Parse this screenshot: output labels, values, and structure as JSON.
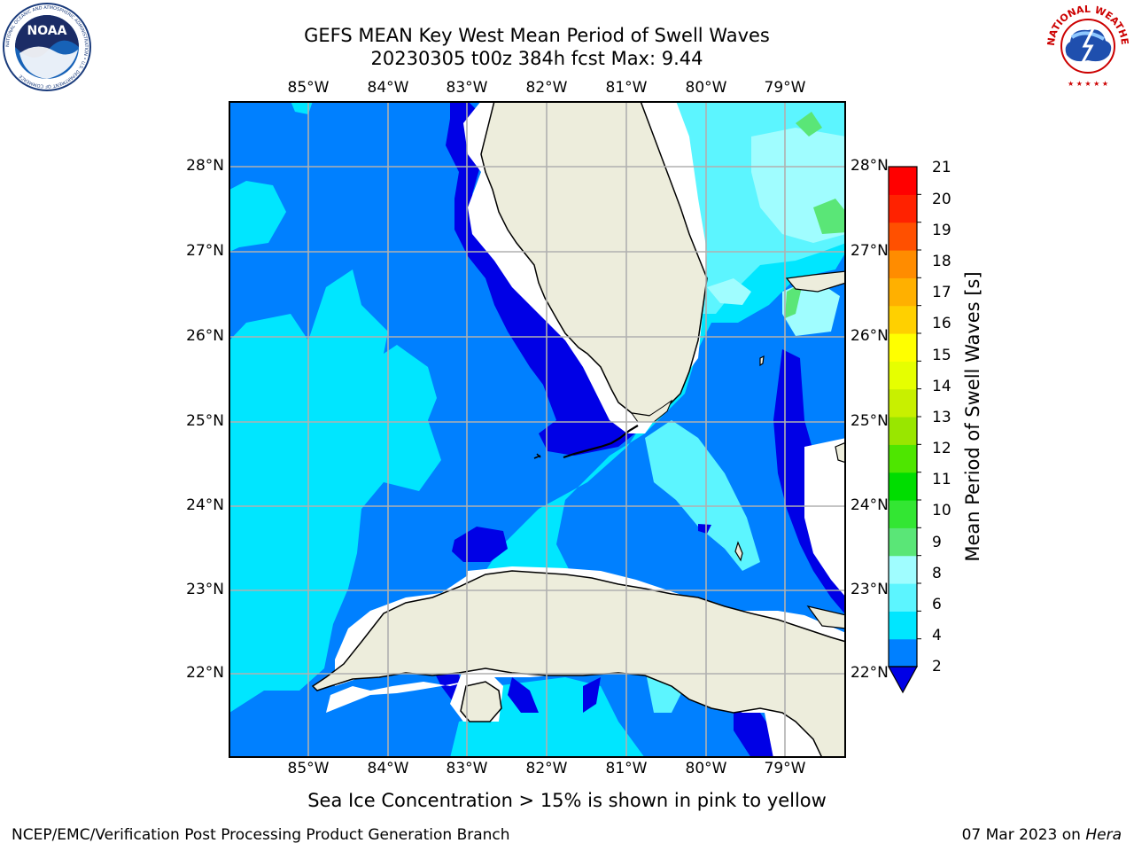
{
  "title": {
    "line1": "GEFS MEAN Key West Mean Period of Swell Waves",
    "line2": "20230305 t00z 384h fcst   Max: 9.44"
  },
  "logos": {
    "left": {
      "name": "NOAA",
      "ring_text": "NATIONAL OCEANIC AND ATMOSPHERIC ADMINISTRATION • U.S. DEPARTMENT OF COMMERCE"
    },
    "right": {
      "name": "NATIONAL WEATHER SERVICE"
    }
  },
  "map": {
    "lon_labels": [
      "85°W",
      "84°W",
      "83°W",
      "82°W",
      "81°W",
      "80°W",
      "79°W"
    ],
    "lat_labels": [
      "28°N",
      "27°N",
      "26°N",
      "25°N",
      "24°N",
      "23°N",
      "22°N"
    ],
    "lon_range": [
      -86,
      -78.25
    ],
    "lat_range": [
      21.05,
      28.75
    ],
    "land_color": "#ededdc",
    "gridline_color": "#b0b0b0",
    "coastline_color": "#000000",
    "water_fill_colors": {
      "2-4": "#0080ff",
      "<2": "#0000e6",
      "4-6": "#00e6ff",
      "6-8": "#5cf5ff",
      "8-9": "#a0fdff",
      "9-10": "#5ae677",
      "missing": "#ffffff"
    }
  },
  "colorbar": {
    "label": "Mean Period of Swell Waves [s]",
    "ticks": [
      "2",
      "4",
      "6",
      "8",
      "9",
      "10",
      "11",
      "12",
      "13",
      "14",
      "15",
      "16",
      "17",
      "18",
      "19",
      "20",
      "21"
    ],
    "colors": [
      "#0080ff",
      "#00e6ff",
      "#5cf5ff",
      "#a0fdff",
      "#5ae677",
      "#33e633",
      "#00dd00",
      "#4ee600",
      "#99e600",
      "#c8f000",
      "#e6ff00",
      "#ffff00",
      "#ffd000",
      "#ffb000",
      "#ff8c00",
      "#ff5000",
      "#ff2200",
      "#ff0000"
    ],
    "under_color": "#0000e6"
  },
  "notes": {
    "ice": "Sea Ice Concentration > 15% is shown in pink to yellow",
    "credit": "NCEP/EMC/Verification Post Processing Product Generation Branch",
    "date_prefix": "07 Mar 2023 on ",
    "machine": "Hera"
  }
}
